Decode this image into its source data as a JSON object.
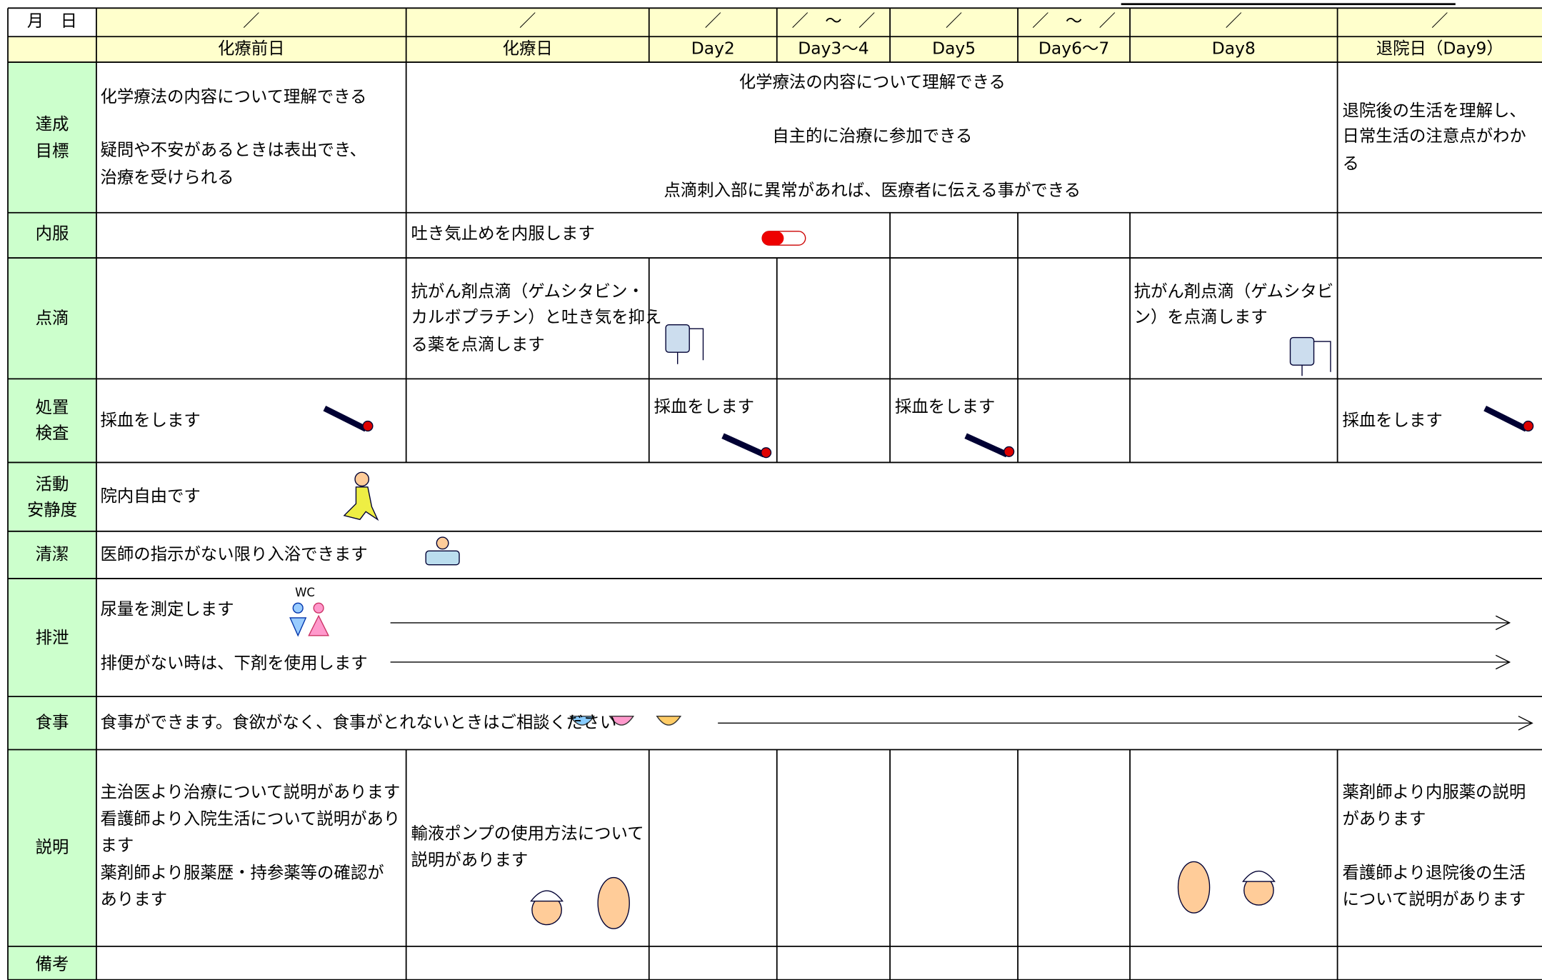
{
  "table": {
    "date_row": {
      "label": "月　日",
      "cells": [
        "／",
        "／",
        "／",
        "／　～　／",
        "／",
        "／　～　／",
        "／",
        "／"
      ]
    },
    "columns": [
      "化療前日",
      "化療日",
      "Day2",
      "Day3～4",
      "Day5",
      "Day6～7",
      "Day8",
      "退院日（Day9）"
    ],
    "rows": [
      {
        "label": [
          "達成",
          "目標"
        ],
        "cells": [
          [
            "化学療法の内容について理解できる",
            "疑問や不安があるときは表出でき、",
            "治療を受けられる"
          ],
          [
            "化学療法の内容について理解できる",
            "自主的に治療に参加できる",
            "点滴刺入部に異常があれば、医療者に伝える事ができる"
          ],
          [
            "退院後の生活を理解し、",
            "日常生活の注意点がわか",
            "る"
          ]
        ]
      },
      {
        "label": [
          "内服"
        ],
        "cells": [
          [
            "吐き気止めを内服します"
          ]
        ]
      },
      {
        "label": [
          "点滴"
        ],
        "cells": [
          [
            "抗がん剤点滴（ゲムシタビン・",
            "カルボプラチン）と吐き気を抑え",
            "る薬を点滴します"
          ],
          [
            "抗がん剤点滴（ゲムシタビ",
            "ン）を点滴します"
          ]
        ]
      },
      {
        "label": [
          "処置",
          "検査"
        ],
        "cells": [
          [
            "採血をします"
          ],
          [
            "採血をします"
          ],
          [
            "採血をします"
          ],
          [
            "採血をします"
          ]
        ]
      },
      {
        "label": [
          "活動",
          "安静度"
        ],
        "cells": [
          [
            "院内自由です"
          ]
        ]
      },
      {
        "label": [
          "清潔"
        ],
        "cells": [
          [
            "医師の指示がない限り入浴できます"
          ]
        ]
      },
      {
        "label": [
          "排泄"
        ],
        "cells": [
          [
            "尿量を測定します",
            "排便がない時は、下剤を使用します"
          ]
        ]
      },
      {
        "label": [
          "食事"
        ],
        "cells": [
          [
            "食事ができます。食欲がなく、食事がとれないときはご相談ください"
          ]
        ]
      },
      {
        "label": [
          "説明"
        ],
        "cells": [
          [
            "主治医より治療について説明があります",
            "看護師より入院生活について説明があり",
            "ます",
            "薬剤師より服薬歴・持参薬等の確認が",
            "あります"
          ],
          [
            "輸液ポンプの使用方法について",
            "説明があります"
          ],
          [
            "薬剤師より内服薬の説明",
            "があります",
            "看護師より退院後の生活",
            "について説明があります"
          ]
        ]
      },
      {
        "label": [
          "備考"
        ],
        "cells": []
      }
    ]
  }
}
